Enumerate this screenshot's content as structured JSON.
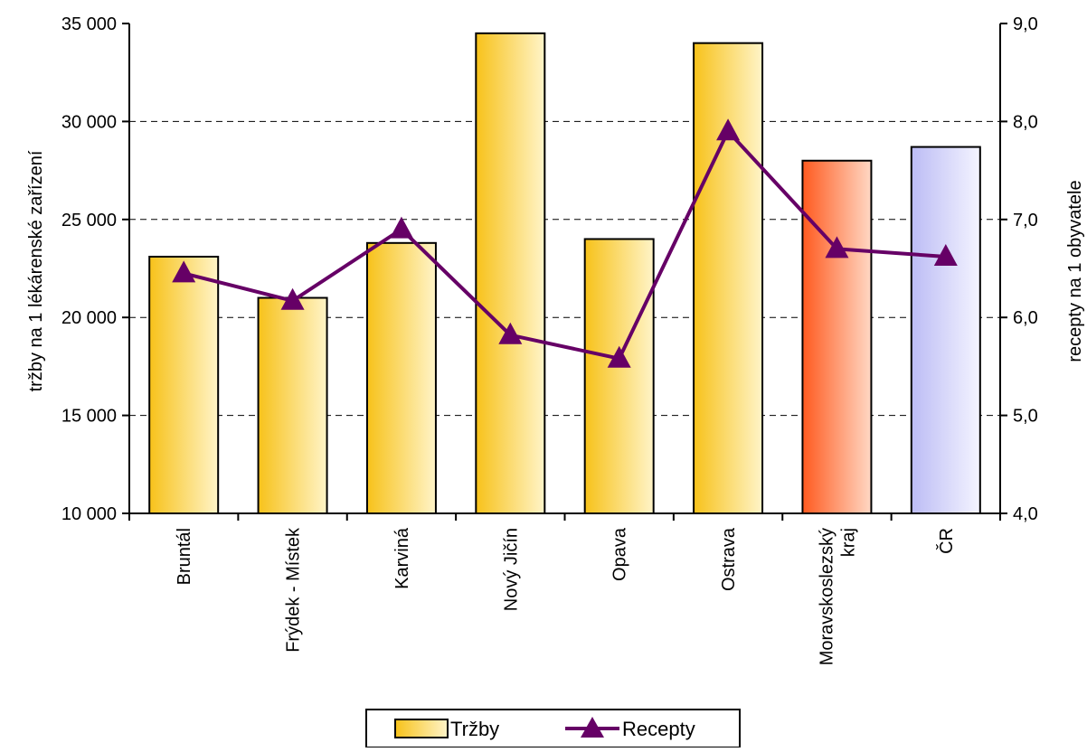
{
  "chart_data": {
    "type": "bar",
    "categories": [
      "Bruntál",
      "Frýdek - Místek",
      "Karviná",
      "Nový Jičín",
      "Opava",
      "Ostrava",
      "Moravskoslezský kraj",
      "ČR"
    ],
    "category_lines": [
      [
        "Bruntál"
      ],
      [
        "Frýdek - Místek"
      ],
      [
        "Karviná"
      ],
      [
        "Nový Jičín"
      ],
      [
        "Opava"
      ],
      [
        "Ostrava"
      ],
      [
        "Moravskoslezský",
        "kraj"
      ],
      [
        "ČR"
      ]
    ],
    "series": [
      {
        "name": "Tržby",
        "type": "bar",
        "axis": "left",
        "values": [
          23100,
          21000,
          23800,
          34500,
          24000,
          34000,
          28000,
          28700
        ],
        "fill_colors": [
          "#f5c518",
          "#f5c518",
          "#f5c518",
          "#f5c518",
          "#f5c518",
          "#f5c518",
          "#ff6a2a",
          "#c8c8f8"
        ]
      },
      {
        "name": "Recepty",
        "type": "line",
        "axis": "right",
        "values": [
          6.45,
          6.17,
          6.9,
          5.82,
          5.58,
          7.9,
          6.7,
          6.62
        ],
        "color": "#660066"
      }
    ],
    "ylabel": "tržby na 1 lékárenské zařízení",
    "y2label": "recepty na 1 obyvatele",
    "ylim": [
      10000,
      35000
    ],
    "y2lim": [
      4.0,
      9.0
    ],
    "yticks": [
      "10 000",
      "15 000",
      "20 000",
      "25 000",
      "30 000",
      "35 000"
    ],
    "y2ticks": [
      "4,0",
      "5,0",
      "6,0",
      "7,0",
      "8,0",
      "9,0"
    ],
    "grid": "horizontal dashed",
    "legend_position": "bottom"
  }
}
